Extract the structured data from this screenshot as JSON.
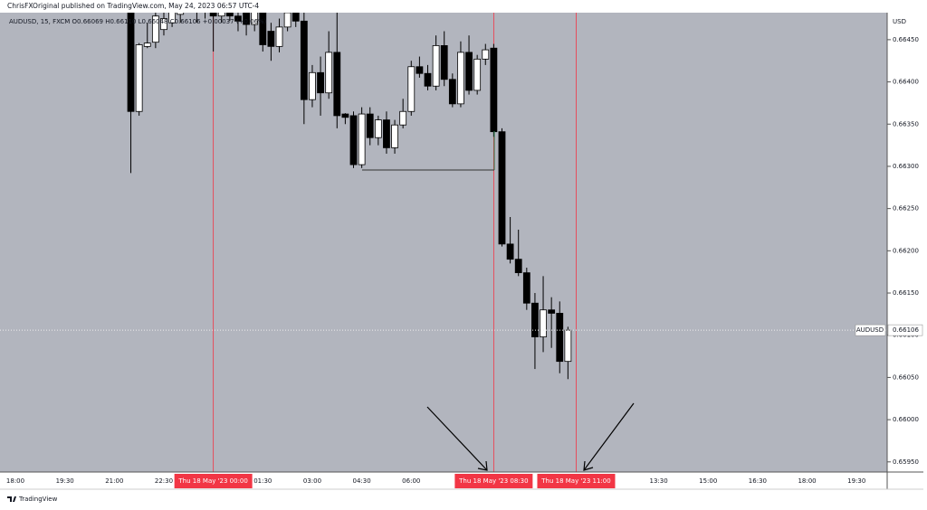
{
  "header": "ChrisFXOriginal published on TradingView.com, May 24, 2023 06:57 UTC-4",
  "footer": "TradingView",
  "chart_data": {
    "type": "candlestick",
    "legend": "AUDUSD, 15, FXCM  O0.66069  H0.66110  L0.66048  C0.66106  +0.00037 (+0.06%)",
    "currency": "USD",
    "price_tag_label": "AUDUSD",
    "last_price": 0.66106,
    "background": "#b2b5be",
    "up_color": "#ffffff",
    "down_color": "#000000",
    "highlight_color": "#f23645",
    "ylim": [
      0.65938,
      0.66482
    ],
    "yticks": [
      {
        "value": 0.6595,
        "label": "0.65950"
      },
      {
        "value": 0.66,
        "label": "0.66000"
      },
      {
        "value": 0.6605,
        "label": "0.66050"
      },
      {
        "value": 0.661,
        "label": "0.66100"
      },
      {
        "value": 0.6615,
        "label": "0.66150"
      },
      {
        "value": 0.662,
        "label": "0.66200"
      },
      {
        "value": 0.6625,
        "label": "0.66250"
      },
      {
        "value": 0.663,
        "label": "0.66300"
      },
      {
        "value": 0.6635,
        "label": "0.66350"
      },
      {
        "value": 0.664,
        "label": "0.66400"
      },
      {
        "value": 0.6645,
        "label": "0.66450"
      }
    ],
    "categories": [
      "18:00",
      null,
      null,
      null,
      null,
      null,
      "19:30",
      null,
      null,
      null,
      null,
      null,
      "21:00",
      null,
      null,
      null,
      null,
      null,
      "22:30",
      null,
      null,
      null,
      null,
      null,
      {
        "label": "Thu 18 May '23   00:00",
        "highlight": true
      },
      null,
      null,
      null,
      null,
      null,
      "01:30",
      null,
      null,
      null,
      null,
      null,
      "03:00",
      null,
      null,
      null,
      null,
      null,
      "04:30",
      null,
      null,
      null,
      null,
      null,
      "06:00",
      null,
      null,
      null,
      null,
      null,
      null,
      null,
      null,
      null,
      {
        "label": "Thu 18 May '23   08:30",
        "highlight": true
      },
      null,
      null,
      null,
      null,
      null,
      null,
      null,
      null,
      null,
      {
        "label": "Thu 18 May '23   11:00",
        "highlight": true
      },
      null,
      null,
      null,
      null,
      null,
      null,
      null,
      null,
      null,
      "13:30",
      null,
      null,
      null,
      null,
      null,
      "15:00",
      null,
      null,
      null,
      null,
      null,
      "16:30",
      null,
      null,
      null,
      null,
      null,
      "18:00",
      null,
      null,
      null,
      null,
      null,
      "19:30",
      null,
      null,
      null
    ],
    "open": [
      null,
      null,
      null,
      null,
      null,
      null,
      null,
      null,
      null,
      null,
      null,
      null,
      null,
      null,
      0.6649,
      0.66365,
      0.66442,
      0.66447,
      0.66462,
      0.6647,
      0.6648,
      0.665,
      0.6649,
      0.66495,
      0.66485,
      0.66478,
      0.6649,
      0.66478,
      0.6649,
      0.66468,
      0.66485,
      0.6646,
      0.66442,
      0.66465,
      0.6649,
      0.66472,
      0.66379,
      0.66411,
      0.66387,
      0.66435,
      0.66362,
      0.6636,
      0.66302,
      0.66362,
      0.66334,
      0.66355,
      0.66322,
      0.66349,
      0.66365,
      0.66418,
      0.6641,
      0.66395,
      0.66443,
      0.66403,
      0.66374,
      0.66435,
      0.6639,
      0.66427,
      0.6644,
      0.66341,
      0.66208,
      0.6619,
      0.66174,
      0.66138,
      0.66098,
      0.6613,
      0.66126,
      0.66069,
      null,
      null,
      null,
      null,
      null,
      null,
      null,
      null,
      null,
      null,
      null,
      null,
      null,
      null,
      null,
      null,
      null,
      null,
      null,
      null,
      null,
      null,
      null,
      null,
      null,
      null,
      null,
      null,
      null,
      null,
      null,
      null,
      null,
      null,
      null,
      null,
      null,
      null
    ],
    "high": [
      null,
      null,
      null,
      null,
      null,
      null,
      null,
      null,
      null,
      null,
      null,
      null,
      null,
      null,
      0.665,
      0.66446,
      0.6647,
      0.6649,
      0.6649,
      0.665,
      0.6651,
      0.6652,
      0.6651,
      0.6652,
      0.66495,
      0.665,
      0.66495,
      0.6649,
      0.66495,
      0.66495,
      0.6649,
      0.6647,
      0.66475,
      0.66495,
      0.665,
      0.6649,
      0.6642,
      0.6643,
      0.6646,
      0.6649,
      0.66363,
      0.66365,
      0.6637,
      0.6637,
      0.6636,
      0.66365,
      0.66355,
      0.6638,
      0.66425,
      0.6643,
      0.6642,
      0.66455,
      0.6646,
      0.6641,
      0.66448,
      0.66455,
      0.66432,
      0.66445,
      0.66445,
      0.66345,
      0.6624,
      0.66225,
      0.6618,
      0.6615,
      0.6617,
      0.66145,
      0.6614,
      0.6611,
      null,
      null,
      null,
      null,
      null,
      null,
      null,
      null,
      null,
      null,
      null,
      null,
      null,
      null,
      null,
      null,
      null,
      null,
      null,
      null,
      null,
      null,
      null,
      null,
      null,
      null,
      null,
      null,
      null,
      null,
      null,
      null,
      null,
      null,
      null,
      null,
      null,
      null
    ],
    "low": [
      null,
      null,
      null,
      null,
      null,
      null,
      null,
      null,
      null,
      null,
      null,
      null,
      null,
      null,
      0.66292,
      0.6636,
      0.6644,
      0.6644,
      0.66455,
      0.66465,
      0.6647,
      0.66485,
      0.6647,
      0.66475,
      0.66436,
      0.6647,
      0.66472,
      0.6646,
      0.66455,
      0.6646,
      0.66436,
      0.66425,
      0.66435,
      0.6646,
      0.66465,
      0.6635,
      0.6637,
      0.6636,
      0.6638,
      0.66345,
      0.6635,
      0.66298,
      0.66298,
      0.66325,
      0.66325,
      0.66315,
      0.66315,
      0.66345,
      0.6636,
      0.66405,
      0.6639,
      0.6639,
      0.66395,
      0.6637,
      0.6637,
      0.66385,
      0.66385,
      0.6642,
      0.66335,
      0.66205,
      0.66185,
      0.6617,
      0.6613,
      0.6606,
      0.6608,
      0.66085,
      0.66055,
      0.66048,
      null,
      null,
      null,
      null,
      null,
      null,
      null,
      null,
      null,
      null,
      null,
      null,
      null,
      null,
      null,
      null,
      null,
      null,
      null,
      null,
      null,
      null,
      null,
      null,
      null,
      null,
      null,
      null,
      null,
      null,
      null,
      null,
      null,
      null,
      null,
      null,
      null,
      null
    ],
    "close": [
      null,
      null,
      null,
      null,
      null,
      null,
      null,
      null,
      null,
      null,
      null,
      null,
      null,
      null,
      0.66365,
      0.66444,
      0.66446,
      0.66478,
      0.66475,
      0.66485,
      0.665,
      0.6649,
      0.66495,
      0.66485,
      0.66478,
      0.6649,
      0.66478,
      0.66472,
      0.66468,
      0.66485,
      0.66444,
      0.66442,
      0.66465,
      0.66482,
      0.66472,
      0.66379,
      0.66411,
      0.66387,
      0.66435,
      0.6636,
      0.66358,
      0.66302,
      0.66362,
      0.66334,
      0.66355,
      0.66322,
      0.66349,
      0.66365,
      0.66418,
      0.6641,
      0.66395,
      0.66443,
      0.66403,
      0.66374,
      0.66435,
      0.6639,
      0.66427,
      0.66438,
      0.66341,
      0.66208,
      0.6619,
      0.66174,
      0.66138,
      0.66098,
      0.6613,
      0.66126,
      0.66069,
      0.66106,
      null,
      null,
      null,
      null,
      null,
      null,
      null,
      null,
      null,
      null,
      null,
      null,
      null,
      null,
      null,
      null,
      null,
      null,
      null,
      null,
      null,
      null,
      null,
      null,
      null,
      null,
      null,
      null,
      null,
      null,
      null,
      null,
      null,
      null,
      null,
      null,
      null,
      null
    ]
  }
}
